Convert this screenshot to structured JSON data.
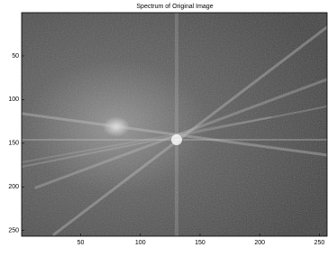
{
  "chart_data": {
    "type": "image",
    "title": "Spectrum of Original Image",
    "xlim": [
      0.5,
      256.5
    ],
    "ylim": [
      0.5,
      256.5
    ],
    "y_reversed": true,
    "xticks": [
      50,
      100,
      150,
      200,
      250
    ],
    "yticks": [
      50,
      100,
      150,
      200,
      250
    ]
  }
}
